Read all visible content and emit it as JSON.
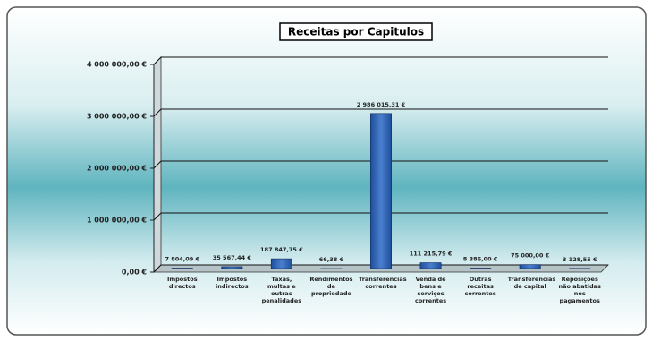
{
  "chart_data": {
    "type": "bar",
    "title": "Receitas por Capitulos",
    "categories": [
      "Impostos directos",
      "Impostos indirectos",
      "Taxas, multas e outras penalidades",
      "Rendimentos de propriedade",
      "Transferências correntes",
      "Venda de bens e serviços correntes",
      "Outras receitas correntes",
      "Transferências de capital",
      "Reposições não abatidas nos pagamentos"
    ],
    "values": [
      7804.09,
      35567.44,
      187847.75,
      66.38,
      2986015.31,
      111215.79,
      8386.0,
      75000.0,
      3128.55
    ],
    "value_labels": [
      "7 804,09 €",
      "35 567,44 €",
      "187 847,75 €",
      "66,38 €",
      "2 986 015,31 €",
      "111 215,79 €",
      "8 386,00 €",
      "75 000,00 €",
      "3 128,55 €"
    ],
    "color": "#2f62b5",
    "ylim": [
      0,
      4000000
    ],
    "yticks": [
      {
        "value": 0,
        "label": "0,00 €"
      },
      {
        "value": 1000000,
        "label": "1 000 000,00 €"
      },
      {
        "value": 2000000,
        "label": "2 000 000,00 €"
      },
      {
        "value": 3000000,
        "label": "3 000 000,00 €"
      },
      {
        "value": 4000000,
        "label": "4 000 000,00 €"
      }
    ],
    "grid": true
  }
}
